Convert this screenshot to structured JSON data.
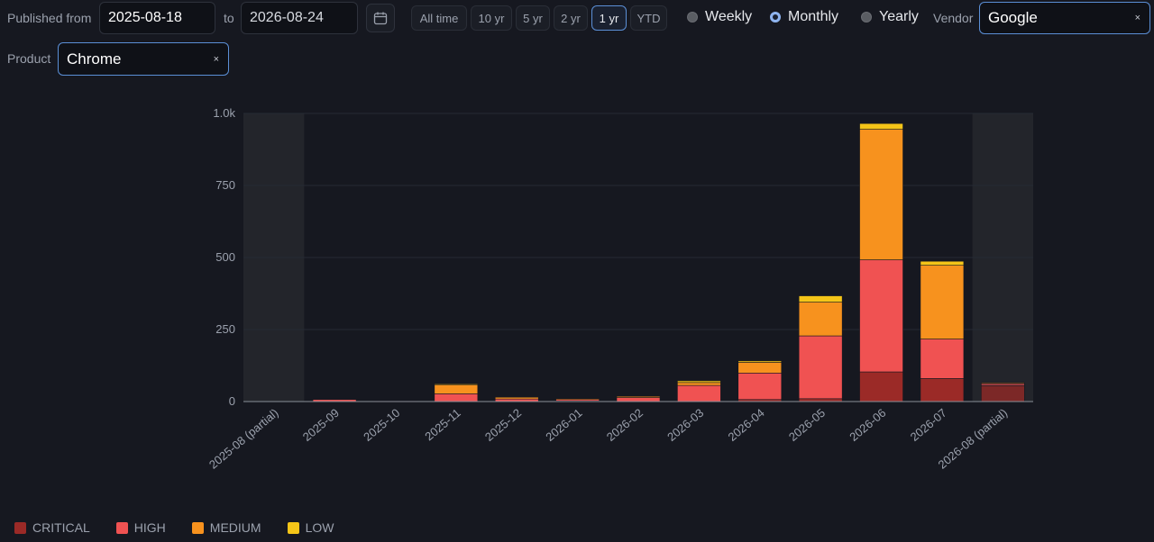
{
  "filters": {
    "published_from_label": "Published from",
    "from_date": "2025-08-18",
    "to_label": "to",
    "to_date": "2026-08-24",
    "ranges": [
      "All time",
      "10 yr",
      "5 yr",
      "2 yr",
      "1 yr",
      "YTD"
    ],
    "active_range": "1 yr",
    "granularity": [
      "Weekly",
      "Monthly",
      "Yearly"
    ],
    "active_granularity": "Monthly",
    "vendor_label": "Vendor",
    "vendor_value": "Google",
    "product_label": "Product",
    "product_value": "Chrome",
    "clear_glyph": "×"
  },
  "colors": {
    "CRITICAL": "#9b2a27",
    "HIGH": "#f05252",
    "MEDIUM": "#f7921e",
    "LOW": "#f5c518",
    "partial_band": "#23252b",
    "grid": "#262a33",
    "axis_text": "#9ba1ad"
  },
  "chart_data": {
    "type": "bar",
    "stacked": true,
    "categories": [
      "2025-08 (partial)",
      "2025-09",
      "2025-10",
      "2025-11",
      "2025-12",
      "2026-01",
      "2026-02",
      "2026-03",
      "2026-04",
      "2026-05",
      "2026-06",
      "2026-07",
      "2026-08 (partial)"
    ],
    "partial_categories": [
      "2025-08 (partial)",
      "2026-08 (partial)"
    ],
    "series": [
      {
        "name": "CRITICAL",
        "values": [
          0,
          0,
          0,
          0,
          0,
          2,
          0,
          0,
          7,
          10,
          103,
          80,
          55
        ]
      },
      {
        "name": "HIGH",
        "values": [
          0,
          7,
          1,
          27,
          9,
          6,
          14,
          56,
          92,
          218,
          389,
          137,
          8
        ]
      },
      {
        "name": "MEDIUM",
        "values": [
          0,
          0,
          0,
          33,
          6,
          2,
          4,
          10,
          37,
          117,
          453,
          256,
          2
        ]
      },
      {
        "name": "LOW",
        "values": [
          0,
          0,
          0,
          1,
          0,
          0,
          0,
          6,
          5,
          22,
          20,
          14,
          0
        ]
      }
    ],
    "ylim": [
      0,
      1000
    ],
    "yticks": [
      0,
      250,
      500,
      750,
      1000
    ],
    "ytick_labels": [
      "0",
      "250",
      "500",
      "750",
      "1.0k"
    ],
    "grid": true,
    "legend_position": "bottom-left"
  }
}
